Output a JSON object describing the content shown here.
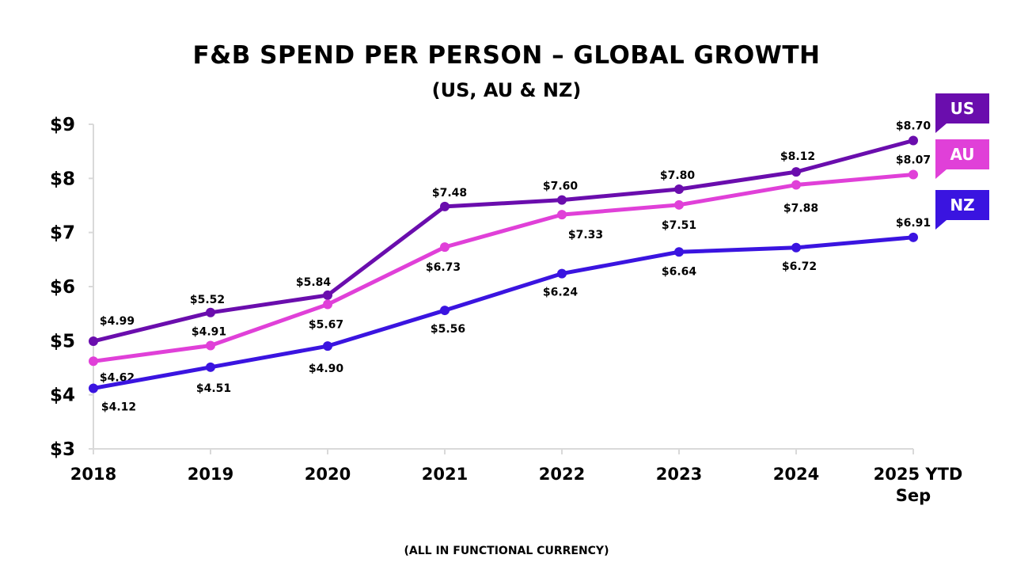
{
  "chart_data": {
    "type": "line",
    "title": "F&B SPEND PER PERSON – GLOBAL GROWTH",
    "subtitle": "(US, AU & NZ)",
    "footnote": "(ALL IN FUNCTIONAL CURRENCY)",
    "categories": [
      "2018",
      "2019",
      "2020",
      "2021",
      "2022",
      "2023",
      "2024",
      "2025 YTD Sep"
    ],
    "ylim": [
      3,
      9
    ],
    "yticks": [
      "$3",
      "$4",
      "$5",
      "$6",
      "$7",
      "$8",
      "$9"
    ],
    "grid": false,
    "legend_placement": "right",
    "series": [
      {
        "name": "US",
        "color": "#6a0dad",
        "values": [
          4.99,
          5.52,
          5.84,
          7.48,
          7.6,
          7.8,
          8.12,
          8.7
        ],
        "labels": [
          "$4.99",
          "$5.52",
          "$5.84",
          "$7.48",
          "$7.60",
          "$7.80",
          "$8.12",
          "$8.70"
        ]
      },
      {
        "name": "AU",
        "color": "#e040d8",
        "values": [
          4.62,
          4.91,
          5.67,
          6.73,
          7.33,
          7.51,
          7.88,
          8.07
        ],
        "labels": [
          "$4.62",
          "$4.91",
          "$5.67",
          "$6.73",
          "$7.33",
          "$7.51",
          "$7.88",
          "$8.07"
        ]
      },
      {
        "name": "NZ",
        "color": "#3a14e0",
        "values": [
          4.12,
          4.51,
          4.9,
          5.56,
          6.24,
          6.64,
          6.72,
          6.91
        ],
        "labels": [
          "$4.12",
          "$4.51",
          "$4.90",
          "$5.56",
          "$6.24",
          "$6.64",
          "$6.72",
          "$6.91"
        ]
      }
    ]
  }
}
